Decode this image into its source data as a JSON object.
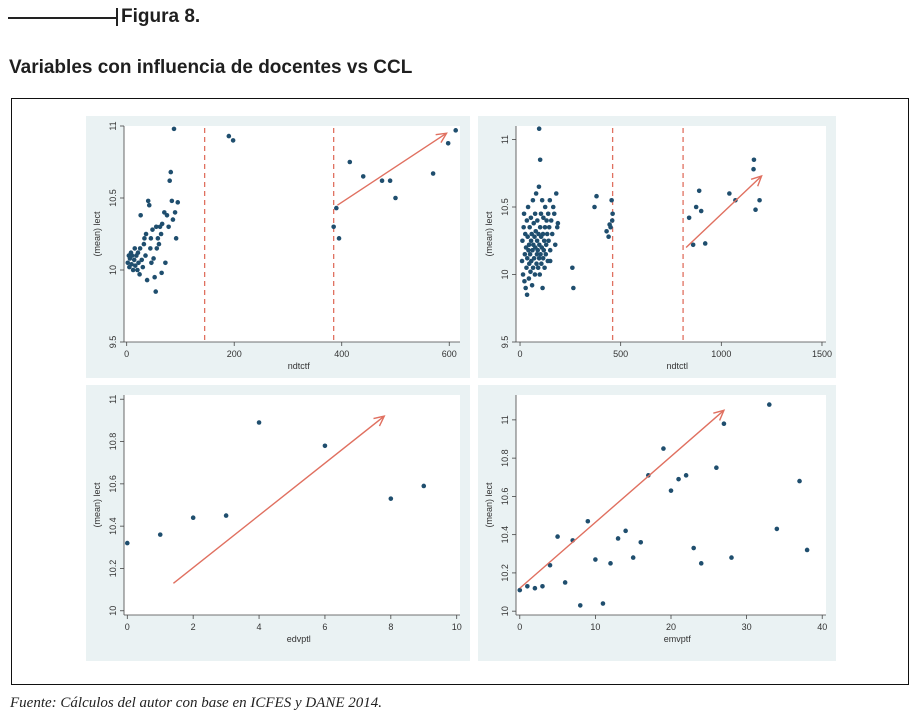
{
  "figure_label": "Figura 8.",
  "title": "Variables con influencia de docentes vs CCL",
  "source": "Fuente: Cálculos del autor con base en ICFES y DANE 2014.",
  "colors": {
    "marker": "#1f4e6e",
    "trend": "#e07060",
    "panel_bg": "#eaf2f3",
    "plot_bg": "#ffffff"
  },
  "chart_data": [
    {
      "type": "scatter",
      "xlabel": "ndtctf",
      "ylabel": "(mean) lect",
      "xlim": [
        -5,
        620
      ],
      "ylim": [
        9.5,
        11.0
      ],
      "xticks": [
        0,
        200,
        400,
        600
      ],
      "xtick_labels": [
        "0",
        "200",
        "400",
        "600"
      ],
      "yticks": [
        9.5,
        10,
        10.5,
        11
      ],
      "ytick_labels": [
        "9.5",
        "10",
        "10.5",
        "11"
      ],
      "vlines": [
        145,
        385
      ],
      "trend": [
        [
          392,
          10.45
        ],
        [
          595,
          10.95
        ]
      ],
      "points": [
        [
          2,
          10.05
        ],
        [
          4,
          10.1
        ],
        [
          5,
          10.02
        ],
        [
          6,
          10.08
        ],
        [
          8,
          10.12
        ],
        [
          9,
          10.04
        ],
        [
          10,
          10.1
        ],
        [
          12,
          10.0
        ],
        [
          14,
          10.07
        ],
        [
          15,
          10.15
        ],
        [
          16,
          10.03
        ],
        [
          18,
          10.1
        ],
        [
          20,
          10.0
        ],
        [
          21,
          10.12
        ],
        [
          22,
          10.05
        ],
        [
          24,
          9.97
        ],
        [
          25,
          10.15
        ],
        [
          26,
          10.38
        ],
        [
          28,
          10.07
        ],
        [
          30,
          10.02
        ],
        [
          32,
          10.18
        ],
        [
          33,
          10.22
        ],
        [
          35,
          10.1
        ],
        [
          36,
          10.25
        ],
        [
          38,
          9.93
        ],
        [
          40,
          10.48
        ],
        [
          42,
          10.45
        ],
        [
          44,
          10.15
        ],
        [
          45,
          10.22
        ],
        [
          46,
          10.05
        ],
        [
          48,
          10.28
        ],
        [
          50,
          10.08
        ],
        [
          52,
          9.95
        ],
        [
          54,
          9.85
        ],
        [
          55,
          10.3
        ],
        [
          56,
          10.15
        ],
        [
          58,
          10.22
        ],
        [
          60,
          10.18
        ],
        [
          62,
          10.3
        ],
        [
          64,
          10.25
        ],
        [
          65,
          9.98
        ],
        [
          66,
          10.32
        ],
        [
          70,
          10.4
        ],
        [
          72,
          10.05
        ],
        [
          75,
          10.38
        ],
        [
          78,
          10.3
        ],
        [
          80,
          10.62
        ],
        [
          82,
          10.68
        ],
        [
          84,
          10.48
        ],
        [
          86,
          10.35
        ],
        [
          88,
          10.98
        ],
        [
          90,
          10.4
        ],
        [
          92,
          10.22
        ],
        [
          95,
          10.47
        ],
        [
          190,
          10.93
        ],
        [
          198,
          10.9
        ],
        [
          385,
          10.3
        ],
        [
          390,
          10.43
        ],
        [
          395,
          10.22
        ],
        [
          415,
          10.75
        ],
        [
          440,
          10.65
        ],
        [
          475,
          10.62
        ],
        [
          490,
          10.62
        ],
        [
          500,
          10.5
        ],
        [
          570,
          10.67
        ],
        [
          598,
          10.88
        ],
        [
          612,
          10.97
        ]
      ]
    },
    {
      "type": "scatter",
      "xlabel": "ndtctl",
      "ylabel": "(mean) lect",
      "xlim": [
        -20,
        1520
      ],
      "ylim": [
        9.5,
        11.1
      ],
      "xticks": [
        0,
        500,
        1000,
        1500
      ],
      "xtick_labels": [
        "0",
        "500",
        "1000",
        "1500"
      ],
      "yticks": [
        9.5,
        10,
        10.5,
        11
      ],
      "ytick_labels": [
        "9.5",
        "10",
        "10.5",
        "11"
      ],
      "vlines": [
        460,
        810
      ],
      "trend": [
        [
          825,
          10.2
        ],
        [
          1200,
          10.73
        ]
      ],
      "points": [
        [
          10,
          10.1
        ],
        [
          12,
          10.25
        ],
        [
          15,
          10.0
        ],
        [
          18,
          10.35
        ],
        [
          20,
          10.45
        ],
        [
          22,
          9.95
        ],
        [
          24,
          10.15
        ],
        [
          26,
          10.3
        ],
        [
          28,
          9.9
        ],
        [
          30,
          10.2
        ],
        [
          32,
          10.05
        ],
        [
          34,
          10.4
        ],
        [
          35,
          9.85
        ],
        [
          36,
          10.12
        ],
        [
          38,
          10.28
        ],
        [
          40,
          10.5
        ],
        [
          42,
          10.18
        ],
        [
          44,
          9.97
        ],
        [
          45,
          10.22
        ],
        [
          46,
          10.08
        ],
        [
          48,
          10.35
        ],
        [
          50,
          10.15
        ],
        [
          52,
          10.02
        ],
        [
          54,
          10.42
        ],
        [
          55,
          10.25
        ],
        [
          56,
          10.1
        ],
        [
          58,
          10.3
        ],
        [
          60,
          9.92
        ],
        [
          62,
          10.18
        ],
        [
          64,
          10.55
        ],
        [
          65,
          10.05
        ],
        [
          66,
          10.22
        ],
        [
          68,
          10.38
        ],
        [
          70,
          10.12
        ],
        [
          72,
          10.28
        ],
        [
          74,
          10.0
        ],
        [
          75,
          10.45
        ],
        [
          76,
          10.2
        ],
        [
          78,
          10.32
        ],
        [
          80,
          10.6
        ],
        [
          82,
          10.08
        ],
        [
          84,
          10.15
        ],
        [
          85,
          10.25
        ],
        [
          86,
          10.4
        ],
        [
          88,
          10.18
        ],
        [
          90,
          10.05
        ],
        [
          92,
          10.3
        ],
        [
          94,
          10.65
        ],
        [
          95,
          10.12
        ],
        [
          96,
          10.22
        ],
        [
          98,
          10.0
        ],
        [
          100,
          10.35
        ],
        [
          102,
          10.15
        ],
        [
          104,
          10.45
        ],
        [
          105,
          10.28
        ],
        [
          106,
          10.08
        ],
        [
          108,
          10.2
        ],
        [
          110,
          10.55
        ],
        [
          112,
          9.9
        ],
        [
          114,
          10.3
        ],
        [
          115,
          10.12
        ],
        [
          116,
          10.42
        ],
        [
          118,
          10.18
        ],
        [
          120,
          10.25
        ],
        [
          122,
          10.05
        ],
        [
          124,
          10.35
        ],
        [
          125,
          10.5
        ],
        [
          128,
          10.15
        ],
        [
          130,
          10.22
        ],
        [
          132,
          10.4
        ],
        [
          135,
          10.3
        ],
        [
          138,
          10.1
        ],
        [
          140,
          10.45
        ],
        [
          142,
          10.25
        ],
        [
          145,
          10.35
        ],
        [
          148,
          10.55
        ],
        [
          150,
          10.18
        ],
        [
          155,
          10.4
        ],
        [
          160,
          10.3
        ],
        [
          165,
          10.5
        ],
        [
          170,
          10.45
        ],
        [
          175,
          10.22
        ],
        [
          180,
          10.6
        ],
        [
          185,
          10.35
        ],
        [
          188,
          10.38
        ],
        [
          95,
          11.08
        ],
        [
          100,
          10.85
        ],
        [
          150,
          10.1
        ],
        [
          260,
          10.05
        ],
        [
          265,
          9.9
        ],
        [
          370,
          10.5
        ],
        [
          380,
          10.58
        ],
        [
          430,
          10.32
        ],
        [
          440,
          10.28
        ],
        [
          445,
          10.37
        ],
        [
          450,
          10.35
        ],
        [
          455,
          10.55
        ],
        [
          458,
          10.4
        ],
        [
          460,
          10.45
        ],
        [
          840,
          10.42
        ],
        [
          860,
          10.22
        ],
        [
          875,
          10.5
        ],
        [
          890,
          10.62
        ],
        [
          900,
          10.47
        ],
        [
          920,
          10.23
        ],
        [
          1040,
          10.6
        ],
        [
          1070,
          10.55
        ],
        [
          1160,
          10.78
        ],
        [
          1162,
          10.85
        ],
        [
          1170,
          10.48
        ],
        [
          1190,
          10.55
        ]
      ]
    },
    {
      "type": "scatter",
      "xlabel": "edvptl",
      "ylabel": "(mean) lect",
      "xlim": [
        -0.1,
        10.1
      ],
      "ylim": [
        9.98,
        11.02
      ],
      "xticks": [
        0,
        2,
        4,
        6,
        8,
        10
      ],
      "xtick_labels": [
        "0",
        "2",
        "4",
        "6",
        "8",
        "10"
      ],
      "yticks": [
        10,
        10.2,
        10.4,
        10.6,
        10.8,
        11
      ],
      "ytick_labels": [
        "10",
        "10.2",
        "10.4",
        "10.6",
        "10.8",
        "11"
      ],
      "vlines": [],
      "trend": [
        [
          1.4,
          10.13
        ],
        [
          7.8,
          10.92
        ]
      ],
      "points": [
        [
          0,
          10.32
        ],
        [
          1,
          10.36
        ],
        [
          2,
          10.44
        ],
        [
          3,
          10.45
        ],
        [
          4,
          10.89
        ],
        [
          6,
          10.78
        ],
        [
          8,
          10.53
        ],
        [
          9,
          10.59
        ]
      ]
    },
    {
      "type": "scatter",
      "xlabel": "emvptf",
      "ylabel": "(mean) lect",
      "xlim": [
        -0.5,
        40.5
      ],
      "ylim": [
        9.98,
        11.13
      ],
      "xticks": [
        0,
        10,
        20,
        30,
        40
      ],
      "xtick_labels": [
        "0",
        "10",
        "20",
        "30",
        "40"
      ],
      "yticks": [
        10,
        10.2,
        10.4,
        10.6,
        10.8,
        11
      ],
      "ytick_labels": [
        "10",
        "10.2",
        "10.4",
        "10.6",
        "10.8",
        "11"
      ],
      "vlines": [],
      "trend": [
        [
          0,
          10.12
        ],
        [
          27,
          11.05
        ]
      ],
      "points": [
        [
          0,
          10.11
        ],
        [
          1,
          10.13
        ],
        [
          2,
          10.12
        ],
        [
          3,
          10.13
        ],
        [
          4,
          10.24
        ],
        [
          5,
          10.39
        ],
        [
          6,
          10.15
        ],
        [
          7,
          10.37
        ],
        [
          8,
          10.03
        ],
        [
          9,
          10.47
        ],
        [
          10,
          10.27
        ],
        [
          11,
          10.04
        ],
        [
          12,
          10.25
        ],
        [
          13,
          10.38
        ],
        [
          14,
          10.42
        ],
        [
          15,
          10.28
        ],
        [
          16,
          10.36
        ],
        [
          17,
          10.71
        ],
        [
          19,
          10.85
        ],
        [
          20,
          10.63
        ],
        [
          21,
          10.69
        ],
        [
          22,
          10.71
        ],
        [
          23,
          10.33
        ],
        [
          24,
          10.25
        ],
        [
          26,
          10.75
        ],
        [
          27,
          10.98
        ],
        [
          28,
          10.28
        ],
        [
          33,
          11.08
        ],
        [
          34,
          10.43
        ],
        [
          37,
          10.68
        ],
        [
          38,
          10.32
        ]
      ]
    }
  ]
}
